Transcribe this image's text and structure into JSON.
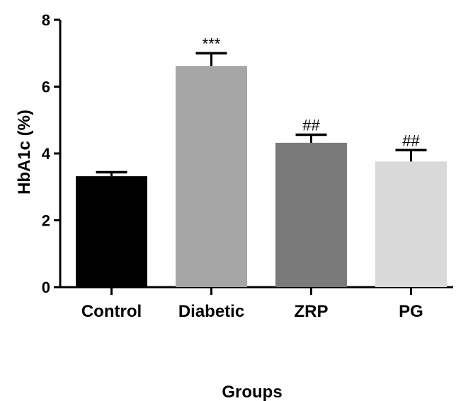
{
  "chart_data": {
    "type": "bar",
    "title": "",
    "xlabel": "Groups",
    "ylabel": "HbA1c (%)",
    "ylim": [
      0,
      8
    ],
    "yticks": [
      0,
      2,
      4,
      6,
      8
    ],
    "grid": false,
    "categories": [
      "Control",
      "Diabetic",
      "ZRP",
      "PG"
    ],
    "values": [
      3.32,
      6.62,
      4.32,
      3.76
    ],
    "errors": [
      0.12,
      0.38,
      0.24,
      0.34
    ],
    "annotations": [
      "",
      "***",
      "##",
      "##"
    ],
    "colors": [
      "#000000",
      "#a6a6a6",
      "#7a7a7a",
      "#d9d9d9"
    ]
  }
}
